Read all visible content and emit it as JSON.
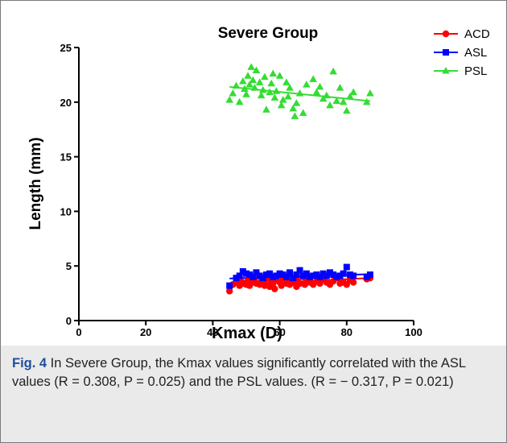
{
  "chart_data": {
    "type": "scatter",
    "title": "Severe Group",
    "xlabel": "Kmax (D)",
    "ylabel": "Length (mm)",
    "xlim": [
      0,
      100
    ],
    "ylim": [
      0,
      25
    ],
    "xticks": [
      "0",
      "20",
      "40",
      "60",
      "80",
      "100"
    ],
    "yticks": [
      "0",
      "5",
      "10",
      "15",
      "20",
      "25"
    ],
    "legend_position": "top-right",
    "grid": false,
    "series": [
      {
        "name": "ACD",
        "color": "#ff0000",
        "marker": "circle",
        "fit": [
          [
            45,
            3.25
          ],
          [
            87,
            3.9
          ]
        ],
        "x": [
          45,
          46,
          47,
          48,
          48.5,
          49,
          50,
          50.5,
          51,
          52,
          52.5,
          53,
          54,
          54.5,
          55,
          55.5,
          56,
          57,
          57.5,
          58,
          58.5,
          59,
          60,
          60.5,
          61,
          62,
          62.5,
          63,
          64,
          64.5,
          65,
          65.5,
          66,
          67,
          67.5,
          68,
          69,
          70,
          71,
          72,
          73,
          74,
          75,
          76,
          77,
          78,
          79,
          80,
          81,
          82,
          86,
          87
        ],
        "y": [
          2.7,
          3.3,
          3.5,
          3.2,
          3.6,
          3.4,
          3.3,
          3.7,
          3.2,
          3.5,
          3.8,
          3.4,
          3.3,
          3.6,
          3.5,
          3.2,
          3.8,
          3.1,
          3.6,
          3.4,
          2.9,
          3.7,
          3.5,
          3.2,
          3.9,
          3.4,
          3.6,
          3.3,
          3.5,
          3.8,
          3.1,
          3.6,
          3.4,
          4.0,
          3.3,
          3.7,
          3.5,
          3.3,
          3.6,
          3.4,
          3.8,
          3.5,
          3.3,
          3.6,
          3.9,
          3.4,
          3.5,
          3.3,
          3.7,
          3.5,
          3.8,
          3.9
        ]
      },
      {
        "name": "ASL",
        "color": "#0000ff",
        "marker": "square",
        "fit": [
          [
            45,
            3.85
          ],
          [
            87,
            4.25
          ]
        ],
        "x": [
          45,
          47,
          48,
          49,
          50,
          51,
          52,
          53,
          54,
          55,
          56,
          57,
          58,
          59,
          60,
          61,
          62,
          63,
          64,
          65,
          66,
          67,
          68,
          69,
          70,
          71,
          72,
          73,
          74,
          75,
          76,
          77,
          78,
          79,
          80,
          81,
          82,
          86,
          87
        ],
        "y": [
          3.2,
          3.9,
          4.1,
          4.5,
          4.3,
          4.2,
          4.0,
          4.4,
          4.1,
          3.9,
          4.2,
          4.3,
          4.0,
          4.1,
          4.3,
          4.2,
          4.0,
          4.4,
          3.9,
          4.2,
          4.6,
          4.1,
          4.3,
          4.0,
          4.1,
          4.2,
          4.0,
          4.3,
          4.1,
          4.4,
          4.2,
          4.0,
          4.1,
          4.3,
          4.9,
          4.2,
          4.1,
          4.0,
          4.2
        ]
      },
      {
        "name": "PSL",
        "color": "#33dd33",
        "marker": "triangle",
        "fit": [
          [
            45,
            21.4
          ],
          [
            87,
            20.1
          ]
        ],
        "x": [
          45,
          46,
          47,
          48,
          49,
          49.5,
          50,
          50.5,
          51,
          51.5,
          52,
          52.5,
          53,
          54,
          54.5,
          55,
          55.5,
          56,
          57,
          57.5,
          58,
          58.5,
          59,
          60,
          60.5,
          61,
          62,
          62.5,
          63,
          64,
          64.5,
          65,
          66,
          67,
          68,
          70,
          71,
          72,
          73,
          74,
          75,
          76,
          77,
          78,
          79,
          80,
          81,
          82,
          86,
          87
        ],
        "y": [
          20.2,
          20.8,
          21.5,
          20.0,
          21.9,
          21.2,
          20.7,
          22.4,
          21.6,
          23.2,
          22.0,
          21.3,
          22.9,
          21.8,
          20.6,
          21.1,
          22.3,
          19.3,
          20.9,
          21.7,
          22.6,
          20.4,
          21.0,
          22.4,
          19.7,
          20.2,
          21.8,
          20.5,
          21.3,
          19.4,
          18.7,
          19.9,
          20.8,
          19.0,
          21.6,
          22.1,
          20.9,
          21.4,
          20.3,
          20.6,
          19.7,
          22.8,
          20.1,
          21.3,
          20.0,
          19.2,
          20.5,
          20.9,
          20.0,
          20.8
        ]
      }
    ]
  },
  "caption": {
    "label": "Fig. 4",
    "text": " In Severe Group, the Kmax values significantly correlated with the ASL values (R = 0.308, P = 0.025) and the PSL values. (R = − 0.317, P = 0.021)"
  }
}
